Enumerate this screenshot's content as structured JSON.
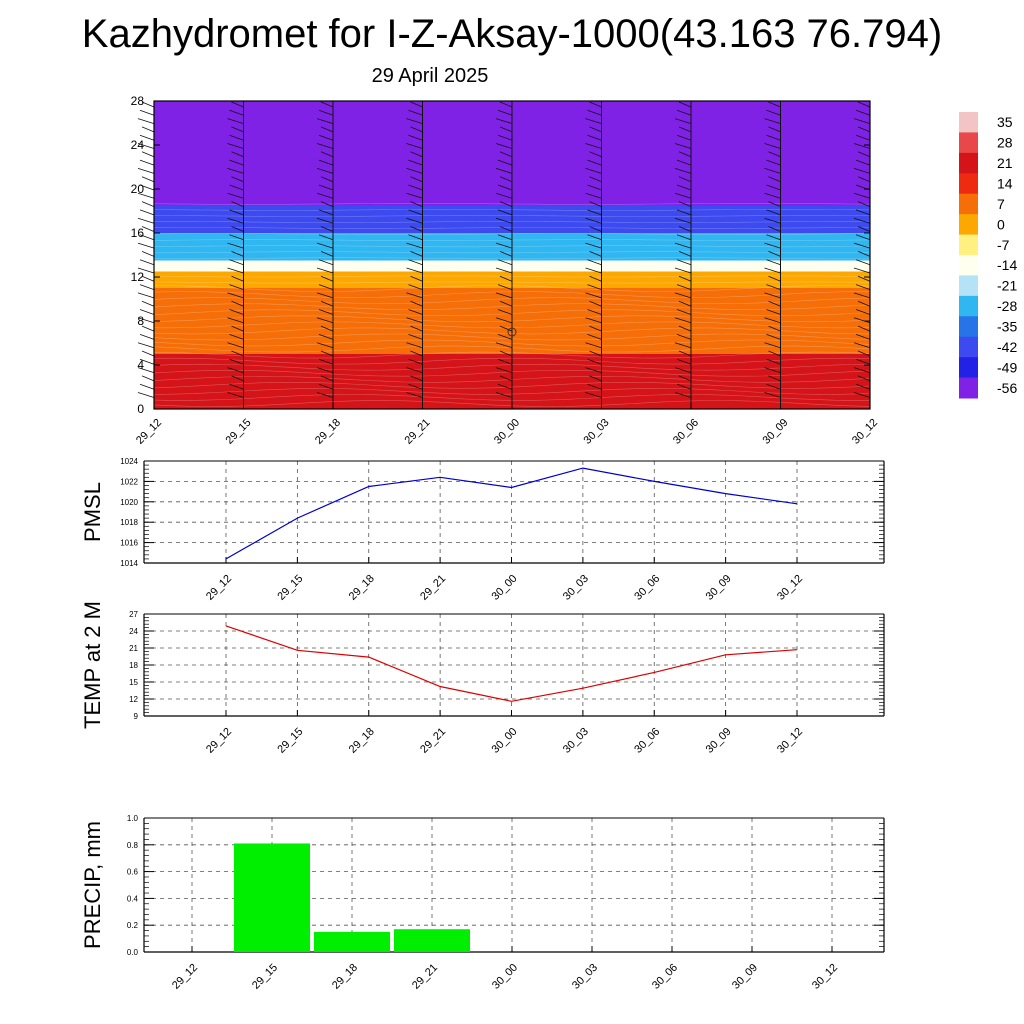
{
  "title": "Kazhydromet for I-Z-Aksay-1000(43.163 76.794)",
  "subtitle": "29 April 2025",
  "chart_data": [
    {
      "type": "heatmap",
      "name": "cross-section",
      "x": [
        "29_12",
        "29_15",
        "29_18",
        "29_21",
        "30_00",
        "30_03",
        "30_06",
        "30_09",
        "30_12"
      ],
      "y_ticks": [
        0,
        4,
        8,
        12,
        16,
        20,
        24,
        28
      ],
      "ylim": [
        0,
        28
      ],
      "grid": false,
      "colorbar": {
        "labels": [
          "35",
          "28",
          "21",
          "14",
          "7",
          "0",
          "-7",
          "-14",
          "-21",
          "-28",
          "-35",
          "-42",
          "-49",
          "-56"
        ],
        "placement": "right",
        "colors": [
          "#f3c4c4",
          "#e8484a",
          "#d41418",
          "#ee2a10",
          "#f56e08",
          "#fca800",
          "#fff080",
          "#fffff0",
          "#b4e2f6",
          "#30b6f0",
          "#2674e8",
          "#3c4af0",
          "#2222e6",
          "#7f22e6"
        ]
      },
      "bands": [
        {
          "from": 0,
          "to": 2,
          "value": 24
        },
        {
          "from": 2,
          "to": 5,
          "value": 18
        },
        {
          "from": 5,
          "to": 11,
          "value": 7
        },
        {
          "from": 11,
          "to": 12.5,
          "value": 0
        },
        {
          "from": 12.5,
          "to": 13.5,
          "value": -14
        },
        {
          "from": 13.5,
          "to": 16,
          "value": -28
        },
        {
          "from": 16,
          "to": 18.5,
          "value": -42
        },
        {
          "from": 18.5,
          "to": 28,
          "value": -56
        }
      ]
    },
    {
      "type": "line",
      "name": "pmsl",
      "ylabel": "PMSL",
      "x": [
        "29_12",
        "29_15",
        "29_18",
        "29_21",
        "30_00",
        "30_03",
        "30_06",
        "30_09",
        "30_12"
      ],
      "values": [
        1014.4,
        1018.4,
        1021.5,
        1022.4,
        1021.4,
        1023.3,
        1022.0,
        1020.8,
        1019.8
      ],
      "ylim": [
        1014,
        1024
      ],
      "y_ticks": [
        1014,
        1016,
        1018,
        1020,
        1022,
        1024
      ],
      "grid": true,
      "color": "#0000cc"
    },
    {
      "type": "line",
      "name": "temp",
      "ylabel": "TEMP at 2 M",
      "x": [
        "29_12",
        "29_15",
        "29_18",
        "29_21",
        "30_00",
        "30_03",
        "30_06",
        "30_09",
        "30_12"
      ],
      "values": [
        24.9,
        20.6,
        19.4,
        14.2,
        11.6,
        13.9,
        16.7,
        19.8,
        20.7
      ],
      "ylim": [
        9,
        27
      ],
      "y_ticks": [
        9,
        12,
        15,
        18,
        21,
        24,
        27
      ],
      "grid": true,
      "color": "#dd0000"
    },
    {
      "type": "bar",
      "name": "precip",
      "ylabel": "PRECIP, mm",
      "categories": [
        "29_12",
        "29_15",
        "29_18",
        "29_21",
        "30_00",
        "30_03",
        "30_06",
        "30_09",
        "30_12"
      ],
      "values": [
        0,
        0.81,
        0.15,
        0.17,
        0,
        0,
        0,
        0,
        0
      ],
      "ylim": [
        0,
        1.0
      ],
      "y_ticks": [
        "0.0",
        "0.2",
        "0.4",
        "0.6",
        "0.8",
        "1.0"
      ],
      "grid": true,
      "color": "#00ee00"
    }
  ]
}
